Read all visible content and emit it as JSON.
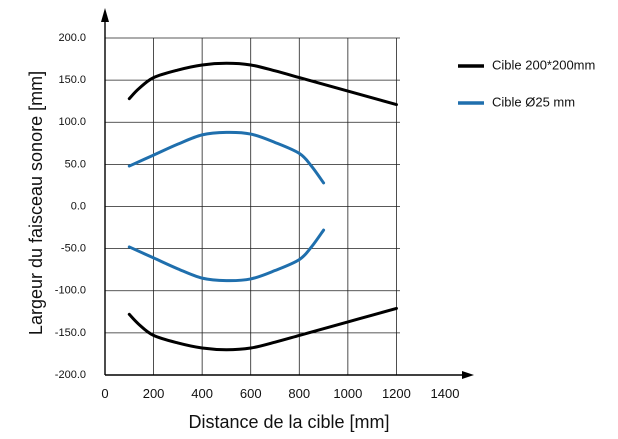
{
  "chart_data": {
    "type": "line",
    "title": "",
    "xlabel": "Distance de la cible [mm]",
    "ylabel": "Largeur du faisceau sonore  [mm]",
    "xlim": [
      0,
      1400
    ],
    "ylim": [
      -200,
      200
    ],
    "x_ticks": [
      0,
      200,
      400,
      600,
      800,
      1000,
      1200,
      1400
    ],
    "x_tick_labels": [
      "0",
      "200",
      "400",
      "600",
      "800",
      "1000",
      "1200",
      "1400"
    ],
    "y_ticks": [
      200,
      150,
      100,
      50,
      0,
      -50,
      -100,
      -150,
      -200
    ],
    "y_tick_labels": [
      "200.0",
      "150.0",
      "100.0",
      "50.0",
      "0.0",
      "-50.0",
      "-100.0",
      "-150.0",
      "-200.0"
    ],
    "grid": true,
    "legend_position": "right",
    "series": [
      {
        "name": "Cible 200*200mm",
        "color": "#000000",
        "x": [
          100,
          140,
          200,
          300,
          400,
          500,
          600,
          700,
          800,
          900,
          1000,
          1100,
          1200
        ],
        "upper": [
          128,
          140,
          153,
          162,
          168,
          170,
          168,
          161,
          153,
          145,
          137,
          129,
          121
        ],
        "lower": [
          -128,
          -140,
          -153,
          -162,
          -168,
          -170,
          -168,
          -161,
          -153,
          -145,
          -137,
          -129,
          -121
        ]
      },
      {
        "name": "Cible Ø25 mm",
        "color": "#1f6fad",
        "x": [
          100,
          200,
          300,
          400,
          500,
          600,
          700,
          800,
          850,
          900
        ],
        "upper": [
          48,
          61,
          74,
          85,
          88,
          86,
          76,
          63,
          48,
          28
        ],
        "lower": [
          -48,
          -61,
          -74,
          -85,
          -88,
          -86,
          -76,
          -63,
          -48,
          -28
        ]
      }
    ]
  }
}
